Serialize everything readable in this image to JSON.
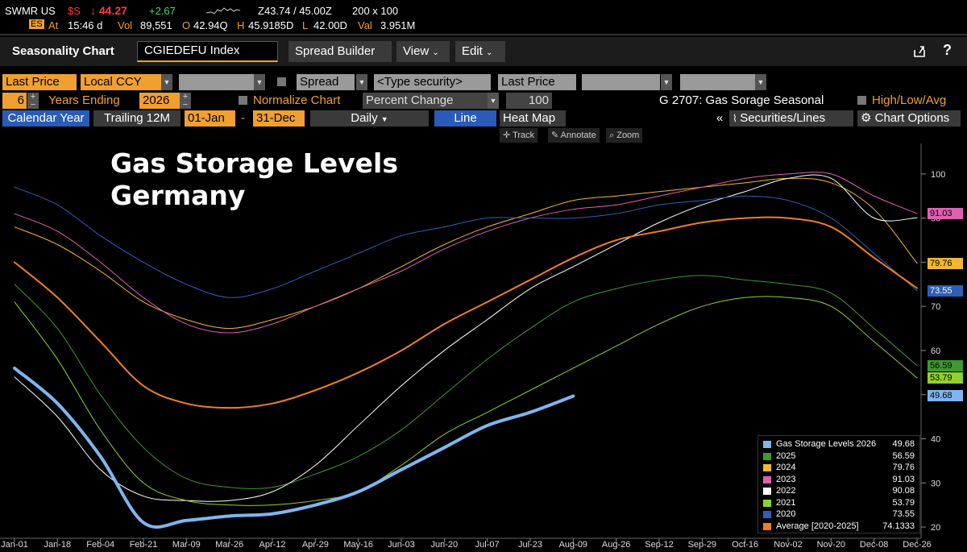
{
  "ticker": {
    "symbol": "SWMR US",
    "flag": "$S",
    "price": "↓ 44.27",
    "change": "+2.67",
    "bidask": "Z43.74 / 45.00Z",
    "size": "200 x 100",
    "at_label": "At",
    "time": "15:46 d",
    "vol_label": "Vol",
    "vol": "89,551",
    "open_label": "O",
    "open": "42.94Q",
    "high_label": "H",
    "high": "45.9185D",
    "low_label": "L",
    "low": "42.00D",
    "val_label": "Val",
    "val": "3.951M",
    "icon_text": "ES"
  },
  "titlebar": {
    "title": "Seasonality Chart",
    "security": "CGIEDEFU Index",
    "spread_builder": "Spread Builder",
    "view": "View",
    "edit": "Edit"
  },
  "controls": {
    "price_field": "Last Price",
    "currency": "Local CCY",
    "spread": "Spread",
    "type_security": "<Type security>",
    "price_field2": "Last Price",
    "years": "6",
    "years_ending_label": "Years Ending",
    "end_year": "2026",
    "normalize_label": "Normalize Chart",
    "normalize_mode": "Percent Change",
    "normalize_value": "100",
    "chart_id": "G 2707: Gas Sorage Seasonal",
    "highlowavg": "High/Low/Avg",
    "calendar_year": "Calendar Year",
    "trailing": "Trailing 12M",
    "start_date": "01-Jan",
    "dash": "-",
    "end_date": "31-Dec",
    "frequency": "Daily",
    "line": "Line",
    "heatmap": "Heat Map",
    "collapse": "«",
    "securities_lines": "Securities/Lines",
    "chart_options": "Chart Options",
    "track": "Track",
    "annotate": "Annotate",
    "zoom": "Zoom"
  },
  "chart_title_line1": "Gas Storage Levels",
  "chart_title_line2": "Germany",
  "colors": {
    "y2026": "#7fb5f0",
    "y2025": "#3d9a2e",
    "y2024": "#f0b830",
    "y2023": "#e060b0",
    "y2022": "#ffffff",
    "y2021": "#90d030",
    "y2020": "#2e5fb8",
    "average": "#f07f20",
    "accent": "#f0a030"
  },
  "chart_data": {
    "type": "line",
    "title": "",
    "xlabel": "",
    "ylabel": "",
    "ylim": [
      18,
      106
    ],
    "x_ticks": [
      "Jan-01",
      "Jan-18",
      "Feb-04",
      "Feb-21",
      "Mar-09",
      "Mar-26",
      "Apr-12",
      "Apr-29",
      "May-16",
      "Jun-03",
      "Jun-20",
      "Jul-07",
      "Jul-23",
      "Aug-09",
      "Aug-26",
      "Sep-12",
      "Sep-29",
      "Oct-16",
      "Nov-02",
      "Nov-20",
      "Dec-08",
      "Dec-26"
    ],
    "y_ticks": [
      20,
      30,
      40,
      50,
      60,
      70,
      80,
      90,
      100
    ],
    "series": [
      {
        "name": "2025",
        "key": "y2025",
        "last": "56.59",
        "points": [
          [
            0,
            75
          ],
          [
            1,
            65
          ],
          [
            2,
            50
          ],
          [
            3,
            38
          ],
          [
            4,
            31
          ],
          [
            5,
            29
          ],
          [
            6,
            29
          ],
          [
            7,
            32
          ],
          [
            8,
            36
          ],
          [
            9,
            42
          ],
          [
            10,
            50
          ],
          [
            11,
            58
          ],
          [
            12,
            65
          ],
          [
            13,
            71
          ],
          [
            14,
            74
          ],
          [
            15,
            76
          ],
          [
            16,
            77
          ],
          [
            17,
            76
          ],
          [
            18,
            75
          ],
          [
            19,
            73
          ],
          [
            20,
            65
          ],
          [
            21,
            56.59
          ]
        ]
      },
      {
        "name": "2024",
        "key": "y2024",
        "last": "79.76",
        "points": [
          [
            0,
            88
          ],
          [
            1,
            84
          ],
          [
            2,
            78
          ],
          [
            3,
            71
          ],
          [
            4,
            67
          ],
          [
            5,
            65
          ],
          [
            6,
            67
          ],
          [
            7,
            70
          ],
          [
            8,
            74
          ],
          [
            9,
            79
          ],
          [
            10,
            84
          ],
          [
            11,
            88
          ],
          [
            12,
            91
          ],
          [
            13,
            94
          ],
          [
            14,
            95
          ],
          [
            15,
            96
          ],
          [
            16,
            97
          ],
          [
            17,
            98
          ],
          [
            18,
            99
          ],
          [
            19,
            98
          ],
          [
            20,
            92
          ],
          [
            21,
            79.76
          ]
        ]
      },
      {
        "name": "2023",
        "key": "y2023",
        "last": "91.03",
        "points": [
          [
            0,
            91
          ],
          [
            1,
            87
          ],
          [
            2,
            80
          ],
          [
            3,
            72
          ],
          [
            4,
            66
          ],
          [
            5,
            64
          ],
          [
            6,
            66
          ],
          [
            7,
            70
          ],
          [
            8,
            74
          ],
          [
            9,
            78
          ],
          [
            10,
            83
          ],
          [
            11,
            87
          ],
          [
            12,
            90
          ],
          [
            13,
            92
          ],
          [
            14,
            93
          ],
          [
            15,
            95
          ],
          [
            16,
            97
          ],
          [
            17,
            99
          ],
          [
            18,
            100
          ],
          [
            19,
            100
          ],
          [
            20,
            95
          ],
          [
            21,
            91.03
          ]
        ]
      },
      {
        "name": "2022",
        "key": "y2022",
        "last": "90.08",
        "points": [
          [
            0,
            54
          ],
          [
            1,
            45
          ],
          [
            2,
            33
          ],
          [
            3,
            27
          ],
          [
            4,
            26
          ],
          [
            5,
            26
          ],
          [
            6,
            28
          ],
          [
            7,
            34
          ],
          [
            8,
            43
          ],
          [
            9,
            52
          ],
          [
            10,
            60
          ],
          [
            11,
            67
          ],
          [
            12,
            74
          ],
          [
            13,
            79
          ],
          [
            14,
            84
          ],
          [
            15,
            89
          ],
          [
            16,
            93
          ],
          [
            17,
            96
          ],
          [
            18,
            99
          ],
          [
            19,
            99
          ],
          [
            20,
            90
          ],
          [
            21,
            90.08
          ]
        ]
      },
      {
        "name": "2021",
        "key": "y2021",
        "last": "53.79",
        "points": [
          [
            0,
            71
          ],
          [
            1,
            58
          ],
          [
            2,
            42
          ],
          [
            3,
            30
          ],
          [
            4,
            26
          ],
          [
            5,
            25
          ],
          [
            6,
            25
          ],
          [
            7,
            26
          ],
          [
            8,
            28
          ],
          [
            9,
            34
          ],
          [
            10,
            41
          ],
          [
            11,
            46
          ],
          [
            12,
            51
          ],
          [
            13,
            56
          ],
          [
            14,
            61
          ],
          [
            15,
            66
          ],
          [
            16,
            70
          ],
          [
            17,
            72
          ],
          [
            18,
            72
          ],
          [
            19,
            70
          ],
          [
            20,
            62
          ],
          [
            21,
            53.79
          ]
        ]
      },
      {
        "name": "2020",
        "key": "y2020",
        "last": "73.55",
        "points": [
          [
            0,
            97
          ],
          [
            1,
            93
          ],
          [
            2,
            86
          ],
          [
            3,
            80
          ],
          [
            4,
            75
          ],
          [
            5,
            72
          ],
          [
            6,
            74
          ],
          [
            7,
            78
          ],
          [
            8,
            82
          ],
          [
            9,
            86
          ],
          [
            10,
            88
          ],
          [
            11,
            90
          ],
          [
            12,
            90
          ],
          [
            13,
            90
          ],
          [
            14,
            91
          ],
          [
            15,
            93
          ],
          [
            16,
            94
          ],
          [
            17,
            95
          ],
          [
            18,
            94
          ],
          [
            19,
            90
          ],
          [
            20,
            82
          ],
          [
            21,
            73.55
          ]
        ]
      },
      {
        "name": "Average  [2020-2025]",
        "key": "average",
        "last": "74.1333",
        "points": [
          [
            0,
            80
          ],
          [
            1,
            72
          ],
          [
            2,
            62
          ],
          [
            3,
            52
          ],
          [
            4,
            48
          ],
          [
            5,
            47
          ],
          [
            6,
            48
          ],
          [
            7,
            51
          ],
          [
            8,
            55
          ],
          [
            9,
            60
          ],
          [
            10,
            66
          ],
          [
            11,
            71
          ],
          [
            12,
            76
          ],
          [
            13,
            81
          ],
          [
            14,
            85
          ],
          [
            15,
            87
          ],
          [
            16,
            89
          ],
          [
            17,
            90
          ],
          [
            18,
            90
          ],
          [
            19,
            88
          ],
          [
            20,
            81
          ],
          [
            21,
            74.13
          ]
        ]
      },
      {
        "name": "Gas Storage Levels 2026",
        "key": "y2026",
        "last": "49.68",
        "points": [
          [
            0,
            56
          ],
          [
            1,
            48
          ],
          [
            2,
            36
          ],
          [
            3,
            21
          ],
          [
            4,
            21.5
          ],
          [
            5,
            22.5
          ],
          [
            6,
            23
          ],
          [
            7,
            25
          ],
          [
            8,
            28
          ],
          [
            9,
            33
          ],
          [
            10,
            38
          ],
          [
            11,
            43
          ],
          [
            12,
            46
          ],
          [
            13,
            49.68
          ]
        ]
      }
    ],
    "legend": [
      {
        "name": "Gas Storage Levels 2026",
        "value": "49.68",
        "key": "y2026"
      },
      {
        "name": "2025",
        "value": "56.59",
        "key": "y2025"
      },
      {
        "name": "2024",
        "value": "79.76",
        "key": "y2024"
      },
      {
        "name": "2023",
        "value": "91.03",
        "key": "y2023"
      },
      {
        "name": "2022",
        "value": "90.08",
        "key": "y2022"
      },
      {
        "name": "2021",
        "value": "53.79",
        "key": "y2021"
      },
      {
        "name": "2020",
        "value": "73.55",
        "key": "y2020"
      },
      {
        "name": "Average  [2020-2025]",
        "value": "74.1333",
        "key": "average"
      }
    ],
    "right_labels": [
      {
        "value": "91.03",
        "key": "y2023"
      },
      {
        "value": "79.76",
        "key": "y2024"
      },
      {
        "value": "73.55",
        "key": "y2020"
      },
      {
        "value": "56.59",
        "key": "y2025"
      },
      {
        "value": "53.79",
        "key": "y2021"
      },
      {
        "value": "49.68",
        "key": "y2026"
      }
    ]
  }
}
